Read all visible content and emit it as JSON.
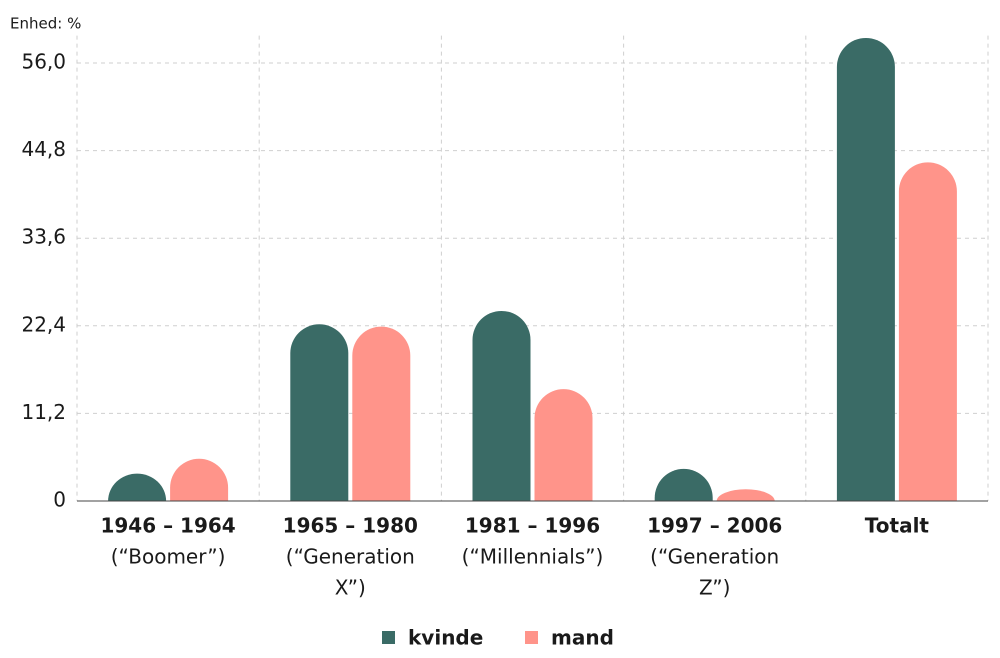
{
  "chart_data": {
    "type": "bar",
    "y_label": "Enhed: %",
    "categories": [
      [
        "1946 – 1964",
        "(“Boomer”)"
      ],
      [
        "1965 – 1980",
        "(“Generation",
        "X”)"
      ],
      [
        "1981 – 1996",
        "(“Millennials”)"
      ],
      [
        "1997 – 2006",
        "(“Generation",
        "Z”)"
      ],
      [
        "Totalt"
      ]
    ],
    "series": [
      {
        "name": "kvinde",
        "color": "#3a6b66",
        "values": [
          3.5,
          22.6,
          24.3,
          4.1,
          59.2
        ]
      },
      {
        "name": "mand",
        "color": "#ff948a",
        "values": [
          5.4,
          22.3,
          14.3,
          1.5,
          43.3
        ]
      }
    ],
    "ylim": [
      0,
      59.5
    ],
    "yticks": [
      0,
      {
        "value": 11.2,
        "label": "11,2"
      },
      {
        "value": 22.4,
        "label": "22,4"
      },
      {
        "value": 33.6,
        "label": "33,6"
      },
      {
        "value": 44.8,
        "label": "44,8"
      },
      {
        "value": 56,
        "label": "56,0"
      }
    ],
    "grid": true,
    "legend": "bottom"
  }
}
